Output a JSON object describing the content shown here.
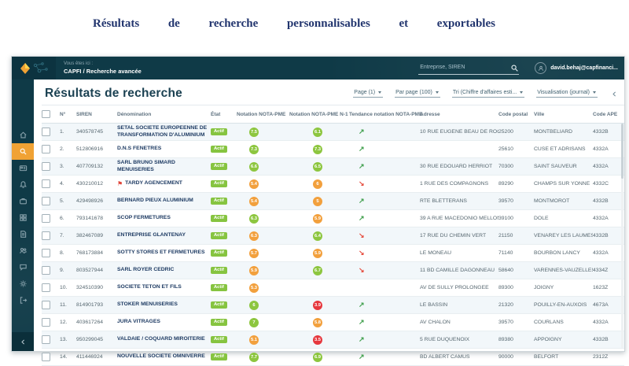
{
  "hero": {
    "title": "Résultats de recherche personnalisables et exportables"
  },
  "header": {
    "breadcrumb_label": "Vous êtes ici :",
    "breadcrumb_path": "CAPFI / Recherche avancée",
    "search_placeholder": "Entreprise, SIREN",
    "user_email": "david.behaj@capfinanci..."
  },
  "sidebar": {
    "items": [
      {
        "name": "home",
        "icon": "home-icon",
        "active": false
      },
      {
        "name": "search",
        "icon": "search-icon",
        "active": true
      },
      {
        "name": "id-card",
        "icon": "id-card-icon",
        "active": false
      },
      {
        "name": "notifications",
        "icon": "bell-icon",
        "active": false
      },
      {
        "name": "portfolio",
        "icon": "briefcase-icon",
        "active": false
      },
      {
        "name": "dashboard",
        "icon": "grid-icon",
        "active": false
      },
      {
        "name": "documents",
        "icon": "document-icon",
        "active": false
      },
      {
        "name": "contacts",
        "icon": "users-icon",
        "active": false
      },
      {
        "name": "messages",
        "icon": "chat-icon",
        "active": false
      },
      {
        "name": "settings",
        "icon": "gear-icon",
        "active": false
      },
      {
        "name": "logout",
        "icon": "signout-icon",
        "active": false
      }
    ]
  },
  "main": {
    "title": "Résultats de recherche",
    "controls": {
      "page": "Page (1)",
      "per_page": "Par page (100)",
      "sort": "Tri (Chiffre d'affaires esti...",
      "view": "Visualisation (journal)"
    },
    "table": {
      "columns": [
        "",
        "N°",
        "SIREN",
        "Dénomination",
        "État",
        "Notation NOTA-PME",
        "Notation NOTA-PME N-1",
        "Tendance notation NOTA-PME",
        "Adresse",
        "Code postal",
        "Ville",
        "Code APE"
      ],
      "rows": [
        {
          "n": "1.",
          "siren": "340578745",
          "name": "SETAL SOCIETE EUROPEENNE DE TRANSFORMATION D'ALUMINIUM",
          "flag": false,
          "etat": "Actif",
          "nota": "7.5",
          "nota_level": "green",
          "nota_n1": "6.1",
          "nota_n1_level": "green",
          "trend": "up",
          "adresse": "10 RUE EUGENE BEAU DE ROCHAS",
          "cp": "25200",
          "ville": "MONTBELIARD",
          "ape": "4332B"
        },
        {
          "n": "2.",
          "siren": "512806916",
          "name": "D.N.S FENETRES",
          "flag": false,
          "etat": "Actif",
          "nota": "7.3",
          "nota_level": "green",
          "nota_n1": "7.3",
          "nota_n1_level": "green",
          "trend": "up",
          "adresse": "",
          "cp": "25610",
          "ville": "CUSE ET ADRISANS",
          "ape": "4332A"
        },
        {
          "n": "3.",
          "siren": "407709132",
          "name": "SARL BRUNO SIMARD MENUISERIES",
          "flag": false,
          "etat": "Actif",
          "nota": "6.6",
          "nota_level": "green",
          "nota_n1": "6.5",
          "nota_n1_level": "green",
          "trend": "up",
          "adresse": "30 RUE EDOUARD HERRIOT",
          "cp": "70300",
          "ville": "SAINT SAUVEUR",
          "ape": "4332A"
        },
        {
          "n": "4.",
          "siren": "430210012",
          "name": "TARDY AGENCEMENT",
          "flag": true,
          "etat": "Actif",
          "nota": "5.4",
          "nota_level": "orange",
          "nota_n1": "6",
          "nota_n1_level": "orange",
          "trend": "down",
          "adresse": "1 RUE DES COMPAGNONS",
          "cp": "89290",
          "ville": "CHAMPS SUR YONNE",
          "ape": "4332C"
        },
        {
          "n": "5.",
          "siren": "429498926",
          "name": "BERNARD PIEUX ALUMINIUM",
          "flag": false,
          "etat": "Actif",
          "nota": "5.4",
          "nota_level": "orange",
          "nota_n1": "5",
          "nota_n1_level": "orange",
          "trend": "up",
          "adresse": "RTE BLETTERANS",
          "cp": "39570",
          "ville": "MONTMOROT",
          "ape": "4332B"
        },
        {
          "n": "6.",
          "siren": "793141678",
          "name": "SCOP FERMETURES",
          "flag": false,
          "etat": "Actif",
          "nota": "6.3",
          "nota_level": "green",
          "nota_n1": "5.9",
          "nota_n1_level": "orange",
          "trend": "up",
          "adresse": "39 A RUE MACEDONIO MELLONI",
          "cp": "39100",
          "ville": "DOLE",
          "ape": "4332A"
        },
        {
          "n": "7.",
          "siren": "382467089",
          "name": "ENTREPRISE GLANTENAY",
          "flag": false,
          "etat": "Actif",
          "nota": "6.3",
          "nota_level": "orange",
          "nota_n1": "6.4",
          "nota_n1_level": "green",
          "trend": "down",
          "adresse": "17 RUE DU CHEMIN VERT",
          "cp": "21150",
          "ville": "VENAREY LES LAUMES",
          "ape": "4332B"
        },
        {
          "n": "8.",
          "siren": "768173884",
          "name": "SOTTY STORES ET FERMETURES",
          "flag": false,
          "etat": "Actif",
          "nota": "5.7",
          "nota_level": "orange",
          "nota_n1": "5.9",
          "nota_n1_level": "orange",
          "trend": "down",
          "adresse": "LE MONEAU",
          "cp": "71140",
          "ville": "BOURBON LANCY",
          "ape": "4332A"
        },
        {
          "n": "9.",
          "siren": "803527944",
          "name": "SARL ROYER CEDRIC",
          "flag": false,
          "etat": "Actif",
          "nota": "5.9",
          "nota_level": "orange",
          "nota_n1": "6.7",
          "nota_n1_level": "green",
          "trend": "down",
          "adresse": "11 BD CAMILLE DAGONNEAU",
          "cp": "58640",
          "ville": "VARENNES-VAUZELLES",
          "ape": "4334Z"
        },
        {
          "n": "10.",
          "siren": "324510390",
          "name": "SOCIETE TETON ET FILS",
          "flag": false,
          "etat": "Actif",
          "nota": "5.3",
          "nota_level": "orange",
          "nota_n1": "",
          "nota_n1_level": "",
          "trend": "",
          "adresse": "AV DE SULLY PROLONGEE",
          "cp": "89300",
          "ville": "JOIGNY",
          "ape": "1623Z"
        },
        {
          "n": "11.",
          "siren": "814901793",
          "name": "STOKER MENUISERIES",
          "flag": false,
          "etat": "Actif",
          "nota": "6",
          "nota_level": "green",
          "nota_n1": "3.9",
          "nota_n1_level": "red",
          "trend": "up",
          "adresse": "LE BASSIN",
          "cp": "21320",
          "ville": "POUILLY-EN-AUXOIS",
          "ape": "4673A"
        },
        {
          "n": "12.",
          "siren": "403617264",
          "name": "JURA VITRAGES",
          "flag": false,
          "etat": "Actif",
          "nota": "7",
          "nota_level": "green",
          "nota_n1": "5.8",
          "nota_n1_level": "orange",
          "trend": "up",
          "adresse": "AV CHALON",
          "cp": "39570",
          "ville": "COURLANS",
          "ape": "4332A"
        },
        {
          "n": "13.",
          "siren": "950299045",
          "name": "VALDAIE / COQUARD MIROITERIE",
          "flag": false,
          "etat": "Actif",
          "nota": "5.1",
          "nota_level": "orange",
          "nota_n1": "3.5",
          "nota_n1_level": "red",
          "trend": "up",
          "adresse": "5 RUE DUQUENOIX",
          "cp": "89380",
          "ville": "APPOIGNY",
          "ape": "4332B"
        },
        {
          "n": "14.",
          "siren": "411446924",
          "name": "NOUVELLE SOCIETE OMNIVERRE",
          "flag": false,
          "etat": "Actif",
          "nota": "7.7",
          "nota_level": "green",
          "nota_n1": "6.9",
          "nota_n1_level": "green",
          "trend": "up",
          "adresse": "BD ALBERT CAMUS",
          "cp": "90000",
          "ville": "BELFORT",
          "ape": "2312Z"
        }
      ]
    }
  },
  "colors": {
    "header_teal": "#0f3a47",
    "active_orange": "#f0a234",
    "badge_green": "#86c440",
    "rating_green": "#8dc63f",
    "rating_orange": "#f2a03d",
    "rating_red": "#e6383e",
    "trend_up": "#3d9e4a",
    "trend_down": "#e54b3c",
    "hero_navy": "#22356e"
  }
}
